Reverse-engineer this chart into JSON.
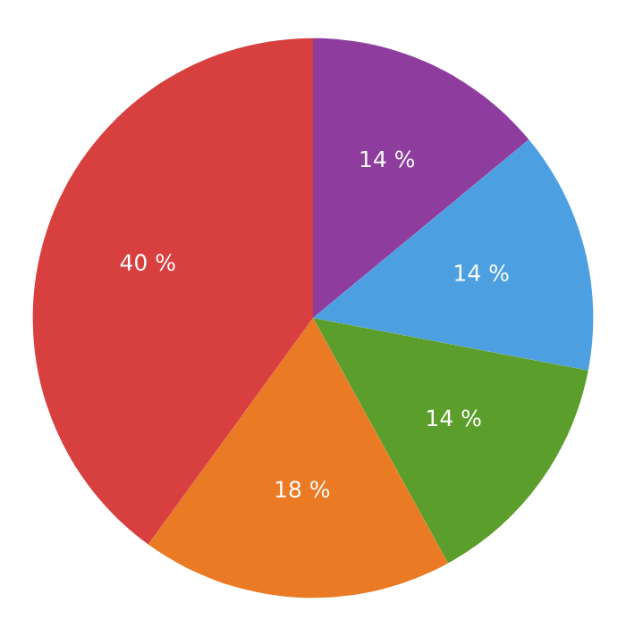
{
  "chart_data": {
    "type": "pie",
    "categories": [
      null,
      null,
      null,
      null,
      null
    ],
    "values": [
      14,
      14,
      14,
      18,
      40
    ],
    "value_labels": [
      "14 %",
      "14 %",
      "14 %",
      "18 %",
      "40 %"
    ],
    "colors": [
      "#8e3d9e",
      "#4c9fe0",
      "#5c9e2c",
      "#ea7a24",
      "#d84040"
    ]
  }
}
